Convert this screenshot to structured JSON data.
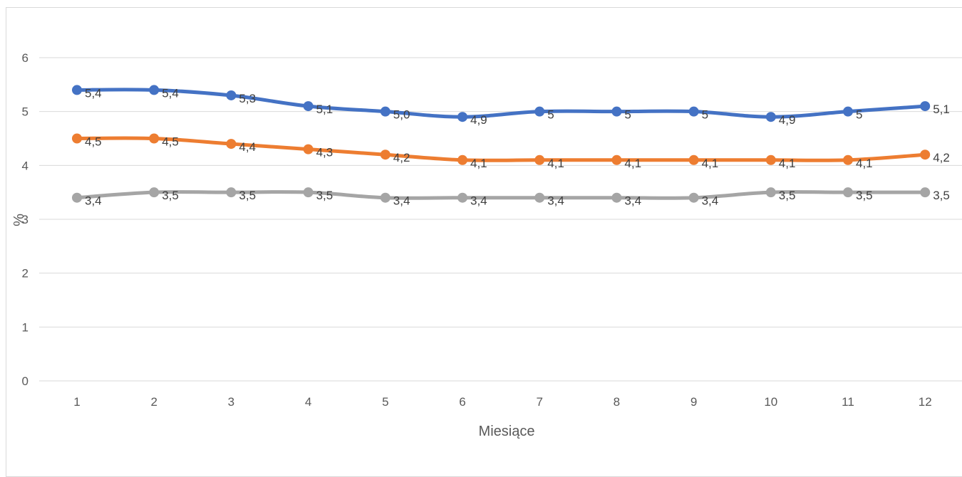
{
  "chart_data": {
    "type": "line",
    "title": "",
    "xlabel": "Miesiące",
    "ylabel": "%",
    "categories": [
      "1",
      "2",
      "3",
      "4",
      "5",
      "6",
      "7",
      "8",
      "9",
      "10",
      "11",
      "12"
    ],
    "ylim": [
      0,
      6
    ],
    "yticks": [
      "0",
      "1",
      "2",
      "3",
      "4",
      "5",
      "6"
    ],
    "grid": true,
    "legend": "none",
    "series": [
      {
        "color": "#4472c4",
        "values": [
          5.4,
          5.4,
          5.3,
          5.1,
          5.0,
          4.9,
          5,
          5,
          5,
          4.9,
          5,
          5.1
        ],
        "labels": [
          "5,4",
          "5,4",
          "5,3",
          "5,1",
          "5,0",
          "4,9",
          "5",
          "5",
          "5",
          "4,9",
          "5",
          "5,1"
        ]
      },
      {
        "color": "#ed7d31",
        "values": [
          4.5,
          4.5,
          4.4,
          4.3,
          4.2,
          4.1,
          4.1,
          4.1,
          4.1,
          4.1,
          4.1,
          4.2
        ],
        "labels": [
          "4,5",
          "4,5",
          "4,4",
          "4,3",
          "4,2",
          "4,1",
          "4,1",
          "4,1",
          "4,1",
          "4,1",
          "4,1",
          "4,2"
        ]
      },
      {
        "color": "#a5a5a5",
        "values": [
          3.4,
          3.5,
          3.5,
          3.5,
          3.4,
          3.4,
          3.4,
          3.4,
          3.4,
          3.5,
          3.5,
          3.5
        ],
        "labels": [
          "3,4",
          "3,5",
          "3,5",
          "3,5",
          "3,4",
          "3,4",
          "3,4",
          "3,4",
          "3,4",
          "3,5",
          "3,5",
          "3,5"
        ]
      }
    ]
  }
}
